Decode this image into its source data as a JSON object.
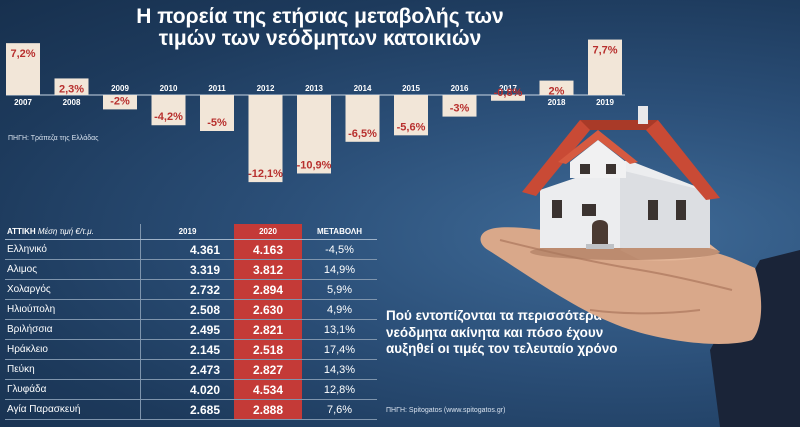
{
  "chart_data": {
    "type": "bar",
    "title": "Η πορεία της ετήσιας μεταβολής των τιμών των νεόδμητων κατοικιών",
    "source": "ΠΗΓΗ: Τράπεζα της Ελλάδας",
    "categories": [
      "2007",
      "2008",
      "2009",
      "2010",
      "2011",
      "2012",
      "2013",
      "2014",
      "2015",
      "2016",
      "2017",
      "2018",
      "2019"
    ],
    "values": [
      7.2,
      2.3,
      -2,
      -4.2,
      -5,
      -12.1,
      -10.9,
      -6.5,
      -5.6,
      -3,
      -0.8,
      2,
      7.7
    ],
    "value_labels": [
      "7,2%",
      "2,3%",
      "-2%",
      "-4,2%",
      "-5%",
      "-12,1%",
      "-10,9%",
      "-6,5%",
      "-5,6%",
      "-3%",
      "-0,8%",
      "2%",
      "7,7%"
    ],
    "bar_color": "#f2e6d8",
    "label_color": "#b8302e",
    "xlabel": "",
    "ylabel": ""
  },
  "table": {
    "header_area": "ΑΤΤΙΚΗ",
    "header_area_sub": "Μέση τιμή €/τ.μ.",
    "header_2019": "2019",
    "header_2020": "2020",
    "header_change": "ΜΕΤΑΒΟΛΗ",
    "highlight_color": "#c43a37",
    "rows": [
      {
        "area": "Ελληνικό",
        "v2019": "4.361",
        "v2020": "4.163",
        "change": "-4,5%"
      },
      {
        "area": "Αλιμος",
        "v2019": "3.319",
        "v2020": "3.812",
        "change": "14,9%"
      },
      {
        "area": "Χολαργός",
        "v2019": "2.732",
        "v2020": "2.894",
        "change": "5,9%"
      },
      {
        "area": "Ηλιούπολη",
        "v2019": "2.508",
        "v2020": "2.630",
        "change": "4,9%"
      },
      {
        "area": "Βριλήσσια",
        "v2019": "2.495",
        "v2020": "2.821",
        "change": "13,1%"
      },
      {
        "area": "Ηράκλειο",
        "v2019": "2.145",
        "v2020": "2.518",
        "change": "17,4%"
      },
      {
        "area": "Πεύκη",
        "v2019": "2.473",
        "v2020": "2.827",
        "change": "14,3%"
      },
      {
        "area": "Γλυφάδα",
        "v2019": "4.020",
        "v2020": "4.534",
        "change": "12,8%"
      },
      {
        "area": "Αγία Παρασκευή",
        "v2019": "2.685",
        "v2020": "2.888",
        "change": "7,6%"
      }
    ]
  },
  "promo_text": "Πού εντοπίζονται τα περισσότερα νεόδμητα ακίνητα και πόσο έχουν αυξηθεί οι τιμές τον τελευταίο χρόνο",
  "table_source": "ΠΗΓΗ: Spitogatos (www.spitogatos.gr)",
  "illustration": {
    "icon": "house-on-hand-icon"
  }
}
